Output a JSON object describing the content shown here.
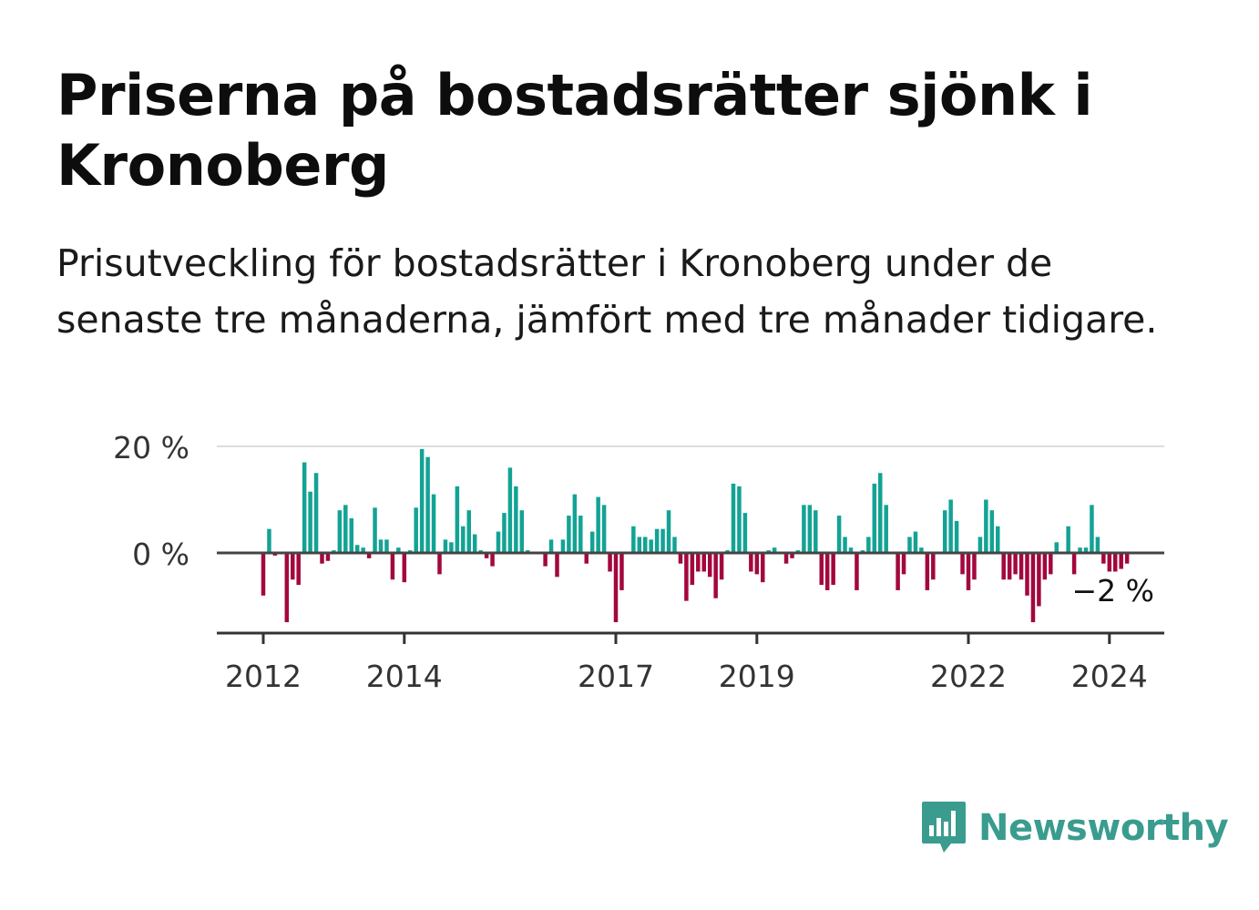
{
  "title": "Priserna på bostadsrätter sjönk i Kronoberg",
  "subtitle": "Prisutveckling för bostadsrätter i Kronoberg under de senaste tre månaderna, jämfört med tre månader tidigare.",
  "brand": {
    "name": "Newsworthy",
    "color": "#3a9c8f",
    "icon": "bar-chart-speech-bubble-icon"
  },
  "colors": {
    "positive": "#13a395",
    "negative": "#a3073e",
    "axis": "#333333",
    "grid": "#dddddd"
  },
  "chart_data": {
    "type": "bar",
    "ylabels": [
      "20 %",
      "0 %"
    ],
    "ylabel_values": [
      20,
      0
    ],
    "ylim": [
      -15,
      20
    ],
    "grid": true,
    "xticks": [
      {
        "label": "2012",
        "month": "2012-01"
      },
      {
        "label": "2014",
        "month": "2014-01"
      },
      {
        "label": "2017",
        "month": "2017-01"
      },
      {
        "label": "2019",
        "month": "2019-01"
      },
      {
        "label": "2022",
        "month": "2022-01"
      },
      {
        "label": "2024",
        "month": "2024-01"
      }
    ],
    "start_month": "2012-01",
    "annotation": {
      "text": "−2 %",
      "month": "2024-05"
    },
    "series": [
      {
        "values": [
          -8,
          4.5,
          -0.5,
          0,
          -13,
          -5,
          -6,
          17,
          11.5,
          15,
          -2,
          -1.5,
          0.5,
          8,
          9,
          6.5,
          1.5,
          1,
          -1,
          8.5,
          2.5,
          2.5,
          -5,
          1,
          -5.5,
          0.5,
          8.5,
          19.5,
          18,
          11,
          -4,
          2.5,
          2,
          12.5,
          5,
          8,
          3.5,
          0.5,
          -1,
          -2.5,
          4,
          7.5,
          16,
          12.5,
          8,
          0.5,
          0,
          0,
          -2.5,
          2.5,
          -4.5,
          2.5,
          7,
          11,
          7,
          -2,
          4,
          10.5,
          9,
          -3.5,
          -13,
          -7,
          0,
          5,
          3,
          3,
          2.5,
          4.5,
          4.5,
          8,
          3,
          -2,
          -9,
          -6,
          -3.5,
          -3.5,
          -4.5,
          -8.5,
          -5,
          0.5,
          13,
          12.5,
          7.5,
          -3.5,
          -4,
          -5.5,
          0.5,
          1,
          0,
          -2,
          -1,
          0.5,
          9,
          9,
          8,
          -6,
          -7,
          -6,
          7,
          3,
          1,
          -7,
          0.5,
          3,
          13,
          15,
          9,
          0,
          -7,
          -4,
          3,
          4,
          1,
          -7,
          -5,
          0,
          8,
          10,
          6,
          -4,
          -7,
          -5,
          3,
          10,
          8,
          5,
          -5,
          -5,
          -4,
          -5,
          -8,
          -13,
          -10,
          -5,
          -4,
          2,
          0,
          5,
          -4,
          1,
          1,
          9,
          3,
          -2,
          -3.5,
          -3.5,
          -3,
          -2
        ]
      }
    ]
  }
}
